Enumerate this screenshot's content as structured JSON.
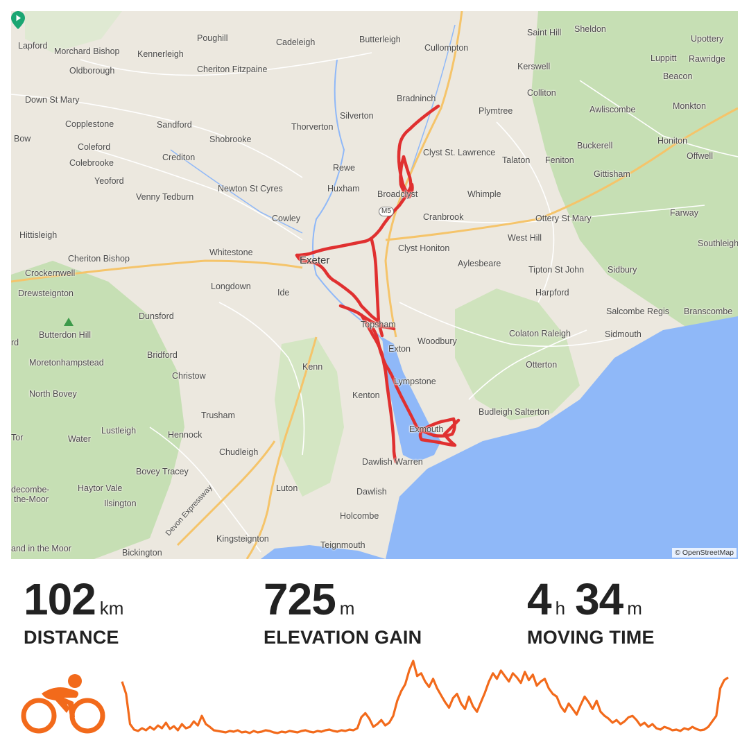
{
  "map": {
    "attribution": "© OpenStreetMap",
    "colors": {
      "land": "#ece8df",
      "forest": "#c6dfb4",
      "water": "#8fb8f8",
      "route": "#e03030",
      "major_road": "#f5c46a",
      "start_marker": "#1aa672"
    },
    "places": [
      {
        "name": "Lapford"
      },
      {
        "name": "Morchard Bishop"
      },
      {
        "name": "Kennerleigh"
      },
      {
        "name": "Poughill"
      },
      {
        "name": "Cadeleigh"
      },
      {
        "name": "Butterleigh"
      },
      {
        "name": "Cullompton"
      },
      {
        "name": "Saint Hill"
      },
      {
        "name": "Sheldon"
      },
      {
        "name": "Upottery"
      },
      {
        "name": "Oldborough"
      },
      {
        "name": "Cheriton Fitzpaine"
      },
      {
        "name": "Kerswell"
      },
      {
        "name": "Luppitt"
      },
      {
        "name": "Rawridge"
      },
      {
        "name": "Beacon"
      },
      {
        "name": "Down St Mary"
      },
      {
        "name": "Bradninch"
      },
      {
        "name": "Colliton"
      },
      {
        "name": "Monkton"
      },
      {
        "name": "Silverton"
      },
      {
        "name": "Plymtree"
      },
      {
        "name": "Copplestone"
      },
      {
        "name": "Sandford"
      },
      {
        "name": "Thorverton"
      },
      {
        "name": "Awliscombe"
      },
      {
        "name": "Bow"
      },
      {
        "name": "Shobrooke"
      },
      {
        "name": "Buckerell"
      },
      {
        "name": "Honiton"
      },
      {
        "name": "Coleford"
      },
      {
        "name": "Clyst St. Lawrence"
      },
      {
        "name": "Offwell"
      },
      {
        "name": "Colebrooke"
      },
      {
        "name": "Crediton"
      },
      {
        "name": "Talaton"
      },
      {
        "name": "Feniton"
      },
      {
        "name": "Rewe"
      },
      {
        "name": "Gittisham"
      },
      {
        "name": "Yeoford"
      },
      {
        "name": "Newton St Cyres"
      },
      {
        "name": "Huxham"
      },
      {
        "name": "Venny Tedburn"
      },
      {
        "name": "Broadclyst"
      },
      {
        "name": "Whimple"
      },
      {
        "name": "Farway"
      },
      {
        "name": "Cowley"
      },
      {
        "name": "Cranbrook"
      },
      {
        "name": "Ottery St Mary"
      },
      {
        "name": "Hittisleigh"
      },
      {
        "name": "Southleigh"
      },
      {
        "name": "West Hill"
      },
      {
        "name": "Whitestone"
      },
      {
        "name": "Clyst Honiton"
      },
      {
        "name": "Cheriton Bishop"
      },
      {
        "name": "Exeter"
      },
      {
        "name": "Aylesbeare"
      },
      {
        "name": "Crockernwell"
      },
      {
        "name": "Tipton St John"
      },
      {
        "name": "Sidbury"
      },
      {
        "name": "Longdown"
      },
      {
        "name": "Drewsteignton"
      },
      {
        "name": "Ide"
      },
      {
        "name": "Harpford"
      },
      {
        "name": "Salcombe Regis"
      },
      {
        "name": "Branscombe"
      },
      {
        "name": "Dunsford"
      },
      {
        "name": "Topsham"
      },
      {
        "name": "Butterdon Hill"
      },
      {
        "name": "Colaton Raleigh"
      },
      {
        "name": "Sidmouth"
      },
      {
        "name": "Exton"
      },
      {
        "name": "Woodbury"
      },
      {
        "name": "Bridford"
      },
      {
        "name": "Moretonhampstead"
      },
      {
        "name": "Kenn"
      },
      {
        "name": "Otterton"
      },
      {
        "name": "Christow"
      },
      {
        "name": "Lympstone"
      },
      {
        "name": "North Bovey"
      },
      {
        "name": "Kenton"
      },
      {
        "name": "Trusham"
      },
      {
        "name": "Budleigh Salterton"
      },
      {
        "name": "Lustleigh"
      },
      {
        "name": "Hennock"
      },
      {
        "name": "Exmouth"
      },
      {
        "name": "Water"
      },
      {
        "name": "Tor"
      },
      {
        "name": "Chudleigh"
      },
      {
        "name": "Dawlish Warren"
      },
      {
        "name": "Bovey Tracey"
      },
      {
        "name": "Haytor Vale"
      },
      {
        "name": "Luton"
      },
      {
        "name": "Ilsington"
      },
      {
        "name": "Dawlish"
      },
      {
        "name": "Holcombe"
      },
      {
        "name": "Kingsteignton"
      },
      {
        "name": "Teignmouth"
      },
      {
        "name": "Bickington"
      },
      {
        "name": "and in the Moor"
      },
      {
        "name": "Devon Expressway"
      },
      {
        "name": "M5"
      },
      {
        "name": "decombe-"
      },
      {
        "name": "the-Moor"
      },
      {
        "name": "rd"
      }
    ]
  },
  "stats": {
    "distance": {
      "value": "102",
      "unit": "km",
      "label": "DISTANCE"
    },
    "elevation": {
      "value": "725",
      "unit": "m",
      "label": "ELEVATION GAIN"
    },
    "moving_time": {
      "hours": "4",
      "hours_unit": "h",
      "minutes": "34",
      "minutes_unit": "m",
      "label": "MOVING TIME"
    }
  },
  "activity": {
    "icon": "cyclist-icon",
    "accent_color": "#f26a1b"
  },
  "elevation_profile": {
    "type": "line",
    "color": "#f26a1b",
    "values": [
      80,
      62,
      18,
      10,
      8,
      12,
      9,
      14,
      10,
      16,
      12,
      20,
      11,
      15,
      9,
      18,
      12,
      14,
      22,
      16,
      30,
      18,
      14,
      9,
      8,
      7,
      6,
      8,
      7,
      9,
      6,
      7,
      5,
      8,
      6,
      7,
      9,
      8,
      6,
      5,
      7,
      6,
      8,
      7,
      6,
      8,
      9,
      7,
      6,
      8,
      7,
      9,
      10,
      8,
      7,
      9,
      8,
      10,
      9,
      12,
      28,
      34,
      26,
      14,
      18,
      24,
      16,
      20,
      30,
      52,
      66,
      76,
      96,
      110,
      88,
      92,
      80,
      72,
      84,
      70,
      60,
      50,
      42,
      56,
      62,
      48,
      40,
      58,
      44,
      36,
      50,
      64,
      80,
      92,
      84,
      96,
      88,
      80,
      92,
      86,
      78,
      94,
      82,
      90,
      74,
      80,
      84,
      70,
      62,
      58,
      44,
      36,
      48,
      40,
      32,
      46,
      58,
      50,
      40,
      52,
      36,
      30,
      26,
      20,
      24,
      18,
      22,
      28,
      30,
      24,
      16,
      20,
      14,
      18,
      12,
      10,
      14,
      12,
      9,
      10,
      8,
      12,
      10,
      14,
      11,
      9,
      10,
      14,
      22,
      30,
      70,
      82,
      86
    ]
  }
}
